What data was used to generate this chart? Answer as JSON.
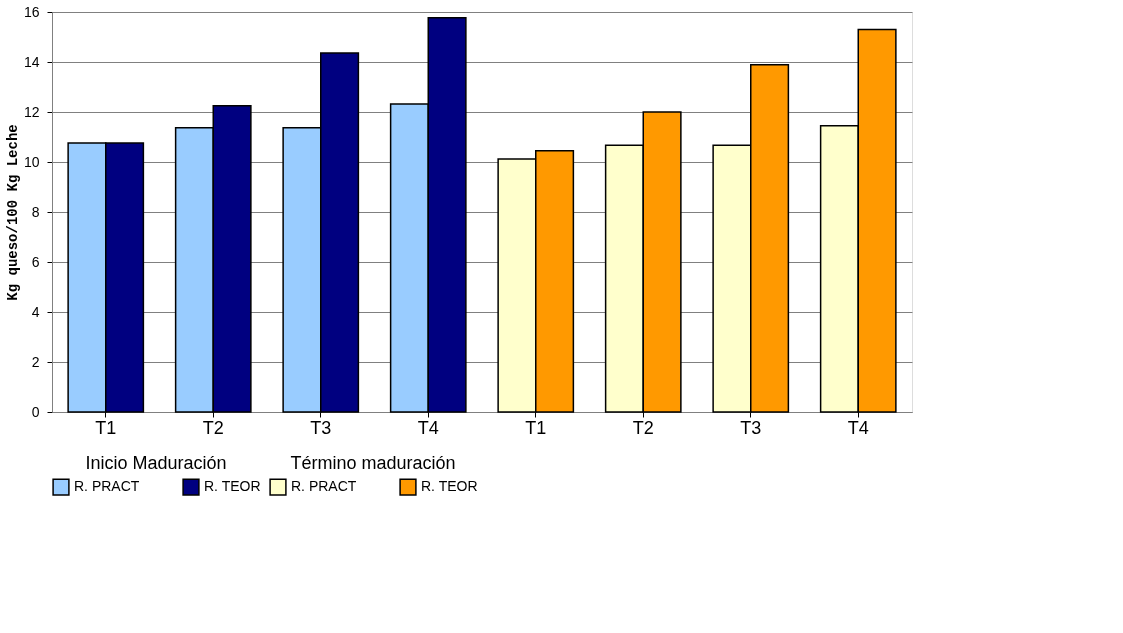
{
  "chart_data": {
    "type": "bar",
    "categories": [
      "T1",
      "T2",
      "T3",
      "T4",
      "T1",
      "T2",
      "T3",
      "T4"
    ],
    "ylabel": "Kg queso/100 Kg Leche",
    "ylim": [
      0,
      16
    ],
    "yticks": [
      0,
      2,
      4,
      6,
      8,
      10,
      12,
      14,
      16
    ],
    "grid": "y",
    "legend": "bottom",
    "legend_title": [
      "Inicio Maduración",
      "Término maduración"
    ],
    "series": [
      {
        "name": "R. PRACT",
        "color": "#99ccff",
        "values": [
          10.76,
          11.37,
          11.37,
          12.32,
          null,
          null,
          null,
          null
        ]
      },
      {
        "name": "R. TEOR",
        "color": "#000080",
        "values": [
          10.76,
          12.25,
          14.36,
          15.77,
          null,
          null,
          null,
          null
        ]
      },
      {
        "name": "R. PRACT",
        "color": "#ffffcc",
        "values": [
          null,
          null,
          null,
          null,
          10.12,
          10.67,
          10.67,
          11.45
        ]
      },
      {
        "name": "R. TEOR",
        "color": "#ff9900",
        "values": [
          null,
          null,
          null,
          null,
          10.45,
          12.0,
          13.89,
          15.3
        ]
      }
    ]
  }
}
